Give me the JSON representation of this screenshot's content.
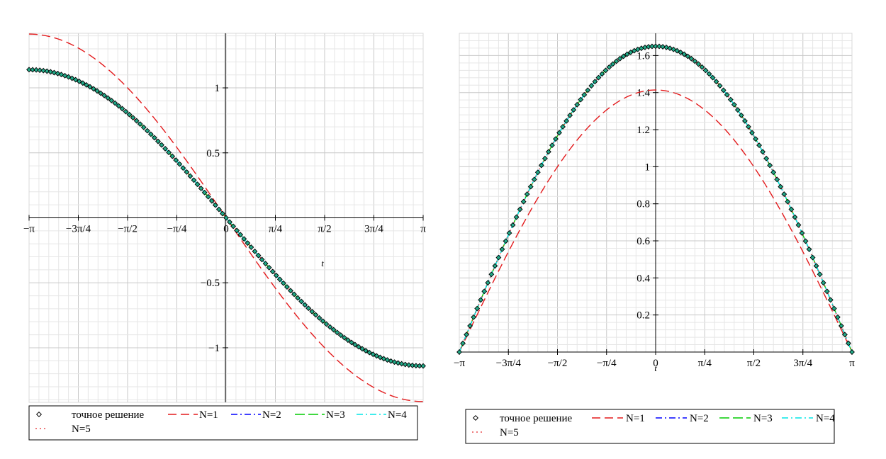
{
  "chart_data": [
    {
      "type": "line",
      "xlabel": "t",
      "ylabel": "",
      "xlim": [
        -3.14159,
        3.14159
      ],
      "ylim": [
        -1.42,
        1.42
      ],
      "grid": true,
      "x_ticks": [
        "−π",
        "−3π/4",
        "−π/2",
        "−π/4",
        "0",
        "π/4",
        "π/2",
        "3π/4",
        "π"
      ],
      "y_ticks": [
        {
          "value": 1,
          "label": "1"
        },
        {
          "value": 0.5,
          "label": "0.5"
        },
        {
          "value": -0.5,
          "label": "−0.5"
        },
        {
          "value": -1,
          "label": "−1"
        }
      ],
      "series": [
        {
          "name": "точное решение",
          "color": "#000000",
          "style": "diamond-markers",
          "amplitude": 1.14
        },
        {
          "name": "N=1",
          "color": "#e31a1c",
          "style": "dash",
          "amplitude": 1.414
        },
        {
          "name": "N=2",
          "color": "#0000ff",
          "style": "dashdot",
          "amplitude": 1.14
        },
        {
          "name": "N=3",
          "color": "#00cc00",
          "style": "longdash",
          "amplitude": 1.14
        },
        {
          "name": "N=4",
          "color": "#00e5e5",
          "style": "dashdot",
          "amplitude": 1.14
        },
        {
          "name": "N=5",
          "color": "#e31a1c",
          "style": "dot",
          "amplitude": 1.14
        }
      ],
      "legend_position": "bottom"
    },
    {
      "type": "line",
      "xlabel": "t",
      "ylabel": "",
      "xlim": [
        -3.14159,
        3.14159
      ],
      "ylim": [
        0,
        1.72
      ],
      "grid": true,
      "x_ticks": [
        "−π",
        "−3π/4",
        "−π/2",
        "−π/4",
        "0",
        "π/4",
        "π/2",
        "3π/4",
        "π"
      ],
      "y_ticks": [
        {
          "value": 1.6,
          "label": "1.6"
        },
        {
          "value": 1.4,
          "label": "1.4"
        },
        {
          "value": 1.2,
          "label": "1.2"
        },
        {
          "value": 1,
          "label": "1"
        },
        {
          "value": 0.8,
          "label": "0.8"
        },
        {
          "value": 0.6,
          "label": "0.6"
        },
        {
          "value": 0.4,
          "label": "0.4"
        },
        {
          "value": 0.2,
          "label": "0.2"
        }
      ],
      "series": [
        {
          "name": "точное решение",
          "color": "#000000",
          "style": "diamond-markers",
          "amplitude": 1.65
        },
        {
          "name": "N=1",
          "color": "#e31a1c",
          "style": "dash",
          "amplitude": 1.414
        },
        {
          "name": "N=2",
          "color": "#0000ff",
          "style": "dashdot",
          "amplitude": 1.65
        },
        {
          "name": "N=3",
          "color": "#00cc00",
          "style": "longdash",
          "amplitude": 1.65
        },
        {
          "name": "N=4",
          "color": "#00e5e5",
          "style": "dashdot",
          "amplitude": 1.65
        },
        {
          "name": "N=5",
          "color": "#e31a1c",
          "style": "dot",
          "amplitude": 1.65
        }
      ],
      "legend_position": "bottom"
    }
  ]
}
